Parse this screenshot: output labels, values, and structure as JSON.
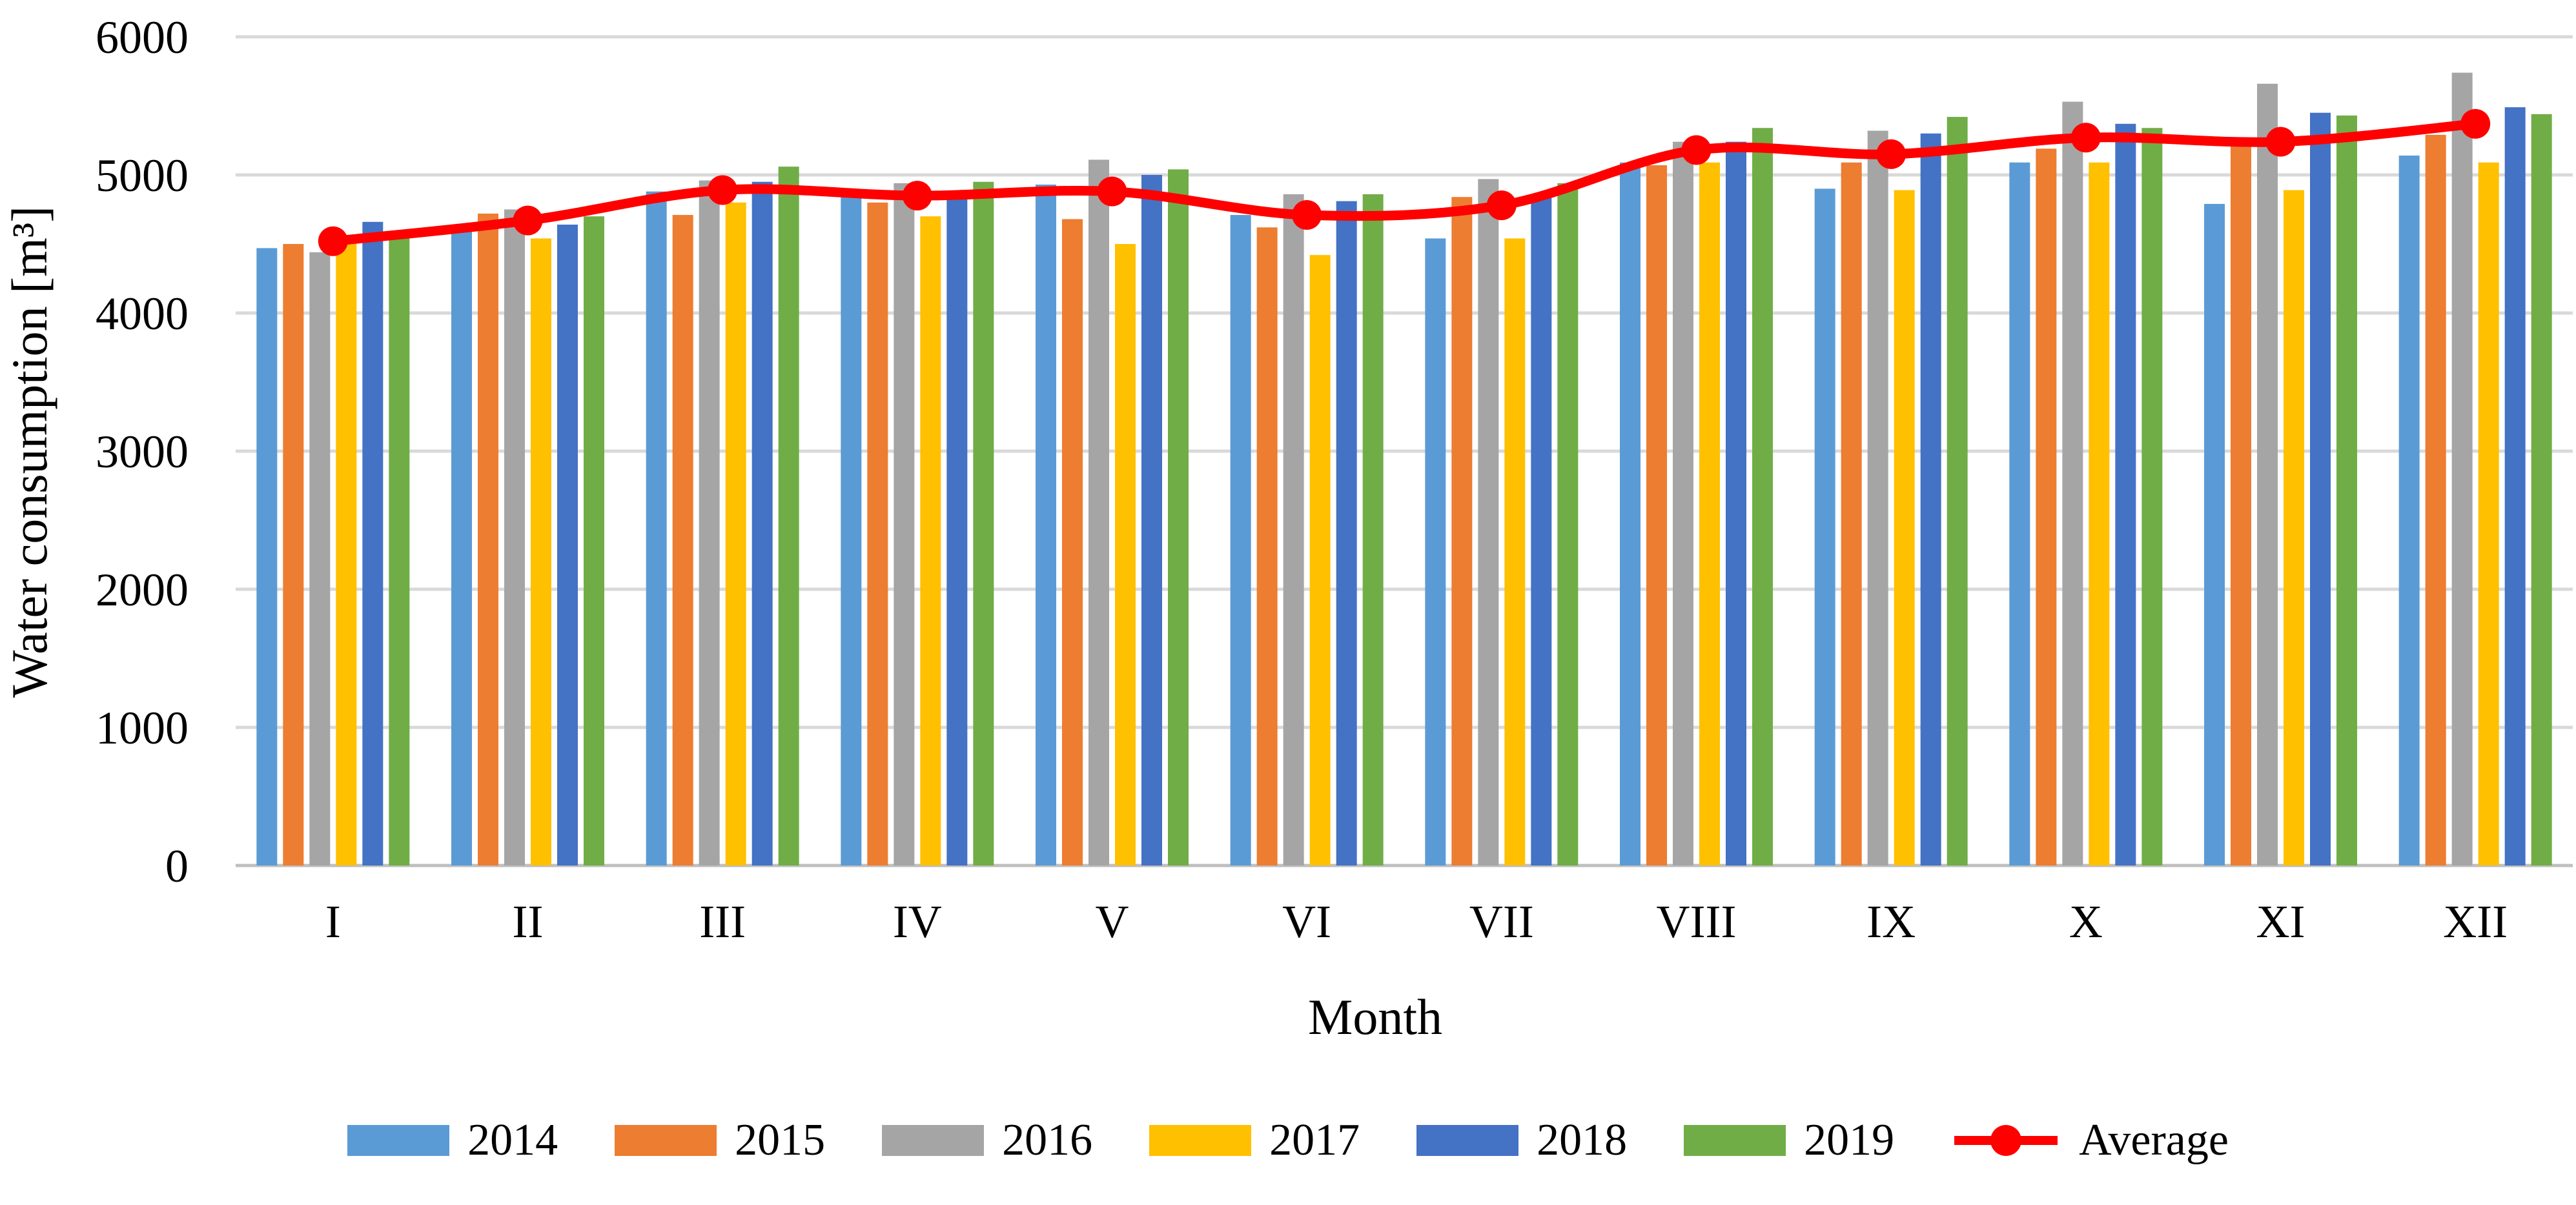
{
  "chart_data": {
    "type": "bar",
    "title": "",
    "xlabel": "Month",
    "ylabel": "Water consumption [m³]",
    "categories": [
      "I",
      "II",
      "III",
      "IV",
      "V",
      "VI",
      "VII",
      "VIII",
      "IX",
      "X",
      "XI",
      "XII"
    ],
    "series": [
      {
        "name": "2014",
        "color": "#5B9BD5",
        "values": [
          4470,
          4640,
          4880,
          4840,
          4930,
          4710,
          4540,
          5090,
          4900,
          5090,
          4790,
          5140
        ]
      },
      {
        "name": "2015",
        "color": "#ED7D31",
        "values": [
          4500,
          4720,
          4710,
          4800,
          4680,
          4620,
          4840,
          5070,
          5090,
          5190,
          5230,
          5290
        ]
      },
      {
        "name": "2016",
        "color": "#A5A5A5",
        "values": [
          4440,
          4750,
          4960,
          4940,
          5110,
          4860,
          4970,
          5240,
          5320,
          5530,
          5660,
          5740
        ]
      },
      {
        "name": "2017",
        "color": "#FFC000",
        "values": [
          4530,
          4540,
          4800,
          4700,
          4500,
          4420,
          4540,
          5090,
          4890,
          5090,
          4890,
          5090
        ]
      },
      {
        "name": "2018",
        "color": "#4472C4",
        "values": [
          4660,
          4640,
          4950,
          4840,
          5000,
          4810,
          4860,
          5240,
          5300,
          5370,
          5450,
          5490
        ]
      },
      {
        "name": "2019",
        "color": "#70AD47",
        "values": [
          4540,
          4700,
          5060,
          4950,
          5040,
          4860,
          4940,
          5340,
          5420,
          5340,
          5430,
          5440
        ]
      }
    ],
    "line_series": {
      "name": "Average",
      "color": "#FF0000",
      "values": [
        4520,
        4670,
        4890,
        4850,
        4880,
        4710,
        4780,
        5180,
        5150,
        5270,
        5240,
        5370
      ]
    },
    "ylim": [
      0,
      6000
    ],
    "yticks": [
      0,
      1000,
      2000,
      3000,
      4000,
      5000,
      6000
    ],
    "grid": true,
    "gridline_color": "#D9D9D9",
    "baseline_color": "#BFBFBF",
    "legend_position": "bottom"
  }
}
